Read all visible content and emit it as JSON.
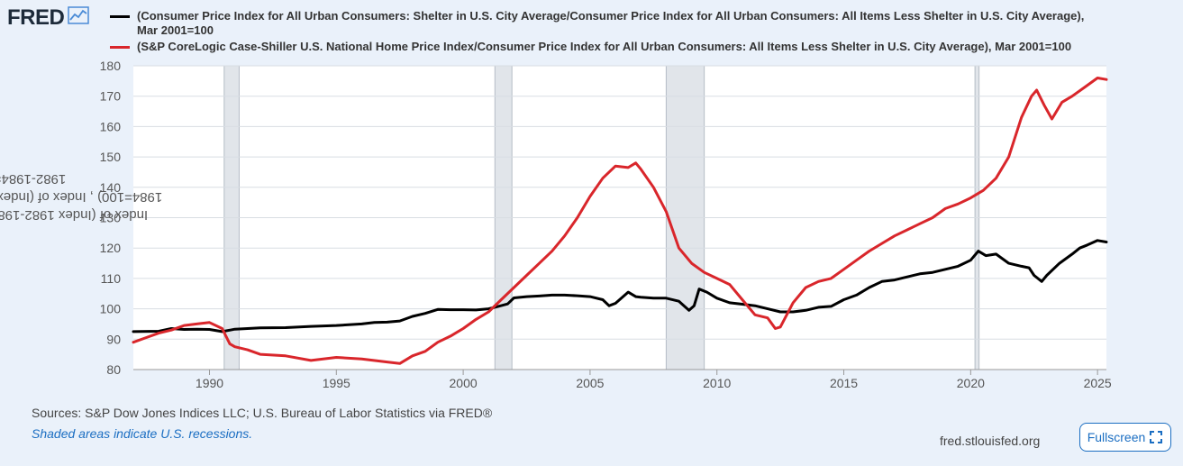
{
  "brand": {
    "name": "FRED"
  },
  "legend": [
    {
      "label": "(Consumer Price Index for All Urban Consumers: Shelter in U.S. City Average/Consumer Price Index for All Urban Consumers: All Items Less Shelter in U.S. City Average), Mar 2001=100",
      "color": "#000000"
    },
    {
      "label": "(S&P CoreLogic Case-Shiller U.S. National Home Price Index/Consumer Price Index for All Urban Consumers: All Items Less Shelter in U.S. City Average), Mar 2001=100",
      "color": "#d9262b"
    }
  ],
  "footer": {
    "sources": "Sources: S&P Dow Jones Indices LLC; U.S. Bureau of Labor Statistics via FRED®",
    "recession_note": "Shaded areas indicate U.S. recessions.",
    "site": "fred.stlouisfed.org",
    "fullscreen_label": "Fullscreen"
  },
  "chart_data": {
    "type": "line",
    "ylabel": "Index of (Index 1982-1984=100/Index 1982-1984=100) , Index of (Index Jan 2000=100/Index 1982-1984=100)",
    "xlabel": "",
    "xlim": [
      1987.0,
      2025.35
    ],
    "ylim": [
      80,
      180
    ],
    "xticks": [
      1990,
      1995,
      2000,
      2005,
      2010,
      2015,
      2020,
      2025
    ],
    "yticks": [
      80,
      90,
      100,
      110,
      120,
      130,
      140,
      150,
      160,
      170,
      180
    ],
    "grid": "horizontal",
    "recessions": [
      [
        1990.58,
        1991.17
      ],
      [
        2001.25,
        2001.92
      ],
      [
        2008.0,
        2009.5
      ],
      [
        2020.17,
        2020.33
      ]
    ],
    "series": [
      {
        "name": "Shelter / All Items Less Shelter",
        "color": "#000000",
        "x": [
          1987.0,
          1988.0,
          1988.5,
          1989.0,
          1989.5,
          1990.0,
          1990.5,
          1991.0,
          1991.5,
          1992.0,
          1993.0,
          1994.0,
          1995.0,
          1996.0,
          1996.5,
          1997.0,
          1997.5,
          1998.0,
          1998.5,
          1999.0,
          1999.5,
          2000.0,
          2000.5,
          2001.0,
          2001.25,
          2001.75,
          2002.0,
          2002.5,
          2003.0,
          2003.5,
          2004.0,
          2004.5,
          2005.0,
          2005.5,
          2005.75,
          2006.0,
          2006.5,
          2006.8,
          2007.0,
          2007.5,
          2008.0,
          2008.5,
          2008.9,
          2009.1,
          2009.3,
          2009.6,
          2010.0,
          2010.5,
          2011.0,
          2011.5,
          2012.0,
          2012.5,
          2013.0,
          2013.5,
          2014.0,
          2014.5,
          2015.0,
          2015.5,
          2016.0,
          2016.5,
          2017.0,
          2017.5,
          2018.0,
          2018.5,
          2019.0,
          2019.5,
          2020.0,
          2020.3,
          2020.6,
          2021.0,
          2021.5,
          2022.0,
          2022.3,
          2022.5,
          2022.8,
          2023.0,
          2023.5,
          2024.0,
          2024.3,
          2024.6,
          2025.0,
          2025.35
        ],
        "values": [
          92.5,
          92.6,
          93.5,
          93.2,
          93.3,
          93.2,
          92.5,
          93.3,
          93.5,
          93.7,
          93.8,
          94.2,
          94.5,
          95.0,
          95.5,
          95.6,
          96.0,
          97.5,
          98.5,
          99.8,
          99.7,
          99.7,
          99.6,
          100.0,
          100.5,
          101.6,
          103.6,
          104.0,
          104.2,
          104.5,
          104.5,
          104.3,
          104.0,
          103.0,
          101.0,
          101.8,
          105.5,
          104.0,
          103.8,
          103.5,
          103.5,
          102.5,
          99.5,
          101.0,
          106.5,
          105.5,
          103.5,
          102.0,
          101.5,
          101.0,
          100.0,
          99.0,
          99.0,
          99.5,
          100.5,
          100.8,
          103.0,
          104.5,
          107.0,
          109.0,
          109.5,
          110.5,
          111.5,
          112.0,
          113.0,
          114.0,
          116.0,
          119.0,
          117.5,
          118.0,
          115.0,
          114.0,
          113.5,
          111.0,
          109.0,
          111.0,
          115.0,
          118.0,
          120.0,
          121.0,
          122.5,
          122.0
        ]
      },
      {
        "name": "Case-Shiller / All Items Less Shelter",
        "color": "#d9262b",
        "x": [
          1987.0,
          1987.5,
          1988.0,
          1988.5,
          1989.0,
          1989.5,
          1990.0,
          1990.5,
          1990.8,
          1991.0,
          1991.5,
          1992.0,
          1993.0,
          1994.0,
          1995.0,
          1996.0,
          1997.0,
          1997.5,
          1998.0,
          1998.5,
          1999.0,
          1999.5,
          2000.0,
          2000.5,
          2001.0,
          2001.5,
          2002.0,
          2002.5,
          2003.0,
          2003.5,
          2004.0,
          2004.5,
          2005.0,
          2005.5,
          2006.0,
          2006.5,
          2006.8,
          2007.0,
          2007.5,
          2008.0,
          2008.5,
          2009.0,
          2009.5,
          2010.0,
          2010.5,
          2011.0,
          2011.5,
          2012.0,
          2012.3,
          2012.5,
          2013.0,
          2013.5,
          2014.0,
          2014.5,
          2015.0,
          2015.5,
          2016.0,
          2016.5,
          2017.0,
          2017.5,
          2018.0,
          2018.5,
          2019.0,
          2019.5,
          2020.0,
          2020.5,
          2021.0,
          2021.5,
          2022.0,
          2022.4,
          2022.6,
          2022.9,
          2023.2,
          2023.6,
          2024.0,
          2024.5,
          2025.0,
          2025.35
        ],
        "values": [
          89.0,
          90.5,
          92.0,
          93.0,
          94.5,
          95.0,
          95.5,
          93.5,
          88.5,
          87.5,
          86.5,
          85.0,
          84.5,
          83.0,
          84.0,
          83.5,
          82.5,
          82.0,
          84.5,
          86.0,
          89.0,
          91.0,
          93.5,
          96.5,
          99.0,
          103.0,
          107.0,
          111.0,
          115.0,
          119.0,
          124.0,
          130.0,
          137.0,
          143.0,
          147.0,
          146.5,
          148.0,
          146.0,
          140.0,
          132.0,
          120.0,
          115.0,
          112.0,
          110.0,
          108.0,
          103.0,
          98.0,
          97.0,
          93.5,
          94.0,
          102.0,
          107.0,
          109.0,
          110.0,
          113.0,
          116.0,
          119.0,
          121.5,
          124.0,
          126.0,
          128.0,
          130.0,
          133.0,
          134.5,
          136.5,
          139.0,
          143.0,
          150.0,
          163.0,
          170.0,
          172.0,
          167.0,
          162.5,
          168.0,
          170.0,
          173.0,
          176.0,
          175.5
        ]
      }
    ]
  }
}
